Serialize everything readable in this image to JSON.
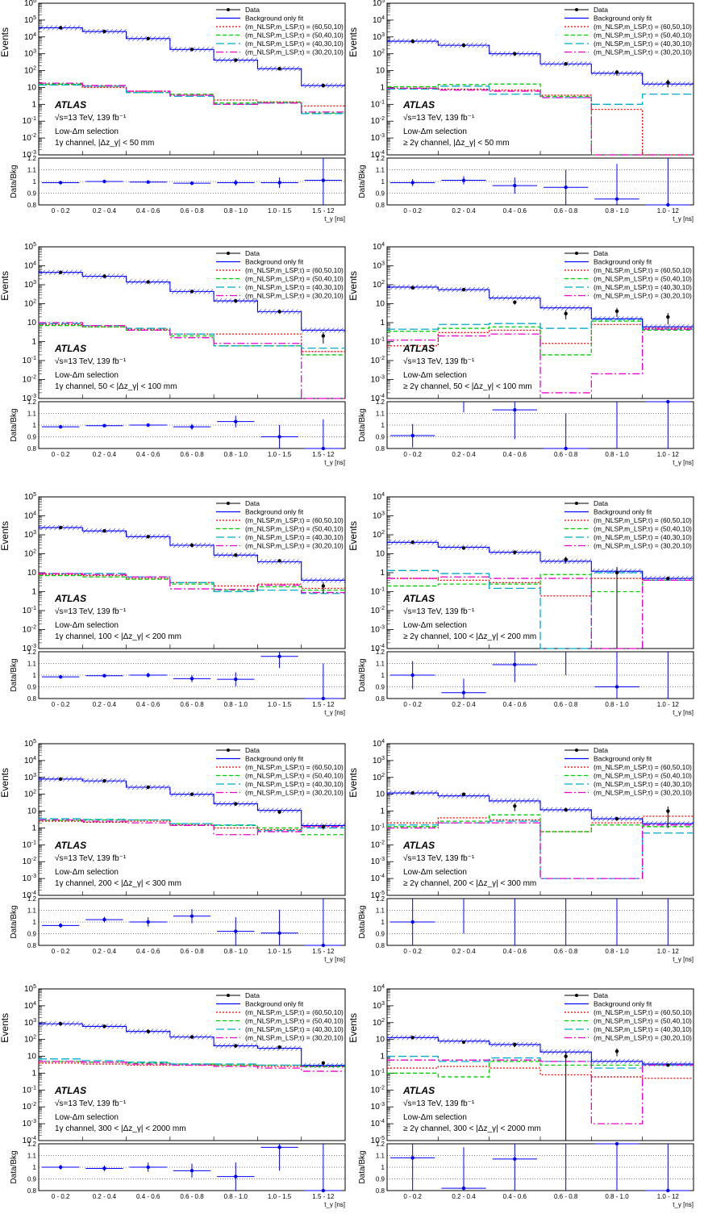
{
  "common": {
    "ylabel_main": "Events",
    "ylabel_ratio": "Data/Bkg",
    "xlabel": "t_γ [ns]",
    "atlas_label": "ATLAS",
    "energy_label": "√s=13 TeV, 139 fb⁻¹",
    "selection_label": "Low-Δm selection",
    "legend": [
      {
        "key": "data",
        "label": "Data",
        "color": "#000000",
        "style": "data"
      },
      {
        "key": "bkg",
        "label": "Background only fit",
        "color": "#0000ff",
        "style": "solid"
      },
      {
        "key": "s60",
        "label": "(m_NLSP,m_LSP,τ) = (60,50,10)",
        "color": "#ff0000",
        "style": "dot"
      },
      {
        "key": "s50",
        "label": "(m_NLSP,m_LSP,τ) = (50,40,10)",
        "color": "#00cc00",
        "style": "dash"
      },
      {
        "key": "s40",
        "label": "(m_NLSP,m_LSP,τ) = (40,30,10)",
        "color": "#00aacc",
        "style": "longdash"
      },
      {
        "key": "s30",
        "label": "(m_NLSP,m_LSP,τ) = (30,20,10)",
        "color": "#ee00cc",
        "style": "dashdot"
      }
    ],
    "ratio_ticks": [
      "0.8",
      "0.9",
      "1",
      "1.1",
      "1.2"
    ]
  },
  "chart_data": [
    {
      "id": "p1",
      "type": "histogram",
      "channel_label": "1γ channel, |Δz_γ| < 50 mm",
      "categories": [
        "0 - 0.2",
        "0.2 - 0.4",
        "0.4 - 0.6",
        "0.6 - 0.8",
        "0.8 - 1.0",
        "1.0 - 1.5",
        "1.5 - 12"
      ],
      "ylim_exp": [
        -3,
        6
      ],
      "ylog": true,
      "data": [
        35000,
        21000,
        8000,
        1800,
        420,
        130,
        13
      ],
      "data_err": [
        0,
        0,
        0,
        0,
        0,
        0,
        2
      ],
      "bkg": [
        35000,
        21000,
        8000,
        1800,
        420,
        130,
        13
      ],
      "s60": [
        15,
        10,
        6,
        3.5,
        1.8,
        1.4,
        0.8
      ],
      "s50": [
        16,
        12,
        5,
        4,
        1.2,
        1.3,
        0.3
      ],
      "s40": [
        14,
        12,
        5,
        3,
        1,
        1.2,
        0.28
      ],
      "s30": [
        18,
        13,
        6,
        3.5,
        1,
        1.2,
        0.35
      ],
      "ratio": [
        0.99,
        1.0,
        0.995,
        0.985,
        0.99,
        0.99,
        1.01
      ],
      "ratio_err": [
        0.003,
        0.004,
        0.006,
        0.012,
        0.025,
        0.045,
        0.3
      ]
    },
    {
      "id": "p2",
      "type": "histogram",
      "channel_label": "≥ 2γ channel, |Δz_γ| < 50 mm",
      "categories": [
        "0 - 0.2",
        "0.2 - 0.4",
        "0.4 - 0.6",
        "0.6 - 0.8",
        "0.8 - 1.0",
        "1.0 - 12"
      ],
      "ylim_exp": [
        -4,
        5
      ],
      "ylog": true,
      "data": [
        550,
        320,
        100,
        25,
        8,
        2
      ],
      "data_err": [
        0,
        0,
        0,
        0,
        3,
        1
      ],
      "bkg": [
        560,
        320,
        100,
        25,
        7,
        1.6
      ],
      "s60": [
        0.9,
        0.8,
        0.7,
        0.35,
        0.05,
        0.0
      ],
      "s50": [
        1.1,
        1.5,
        1.6,
        0.3,
        0.0,
        0.0
      ],
      "s40": [
        0.8,
        1.2,
        0.4,
        0.25,
        0.1,
        0.4
      ],
      "s30": [
        0.9,
        0.7,
        0.6,
        0.25,
        0.0,
        0.0
      ],
      "ratio": [
        0.99,
        1.01,
        0.965,
        0.95,
        0.85,
        0.8
      ],
      "ratio_err": [
        0.03,
        0.035,
        0.07,
        0.15,
        0.3,
        0.4
      ]
    },
    {
      "id": "p3",
      "type": "histogram",
      "channel_label": "1γ channel, 50 < |Δz_γ| < 100 mm",
      "categories": [
        "0 - 0.2",
        "0.2 - 0.4",
        "0.4 - 0.6",
        "0.6 - 0.8",
        "0.8 - 1.0",
        "1.0 - 1.5",
        "1.5 - 12"
      ],
      "ylim_exp": [
        -3,
        5
      ],
      "ylog": true,
      "data": [
        4500,
        2800,
        1400,
        440,
        140,
        38,
        2
      ],
      "data_err": [
        0,
        0,
        0,
        0,
        0,
        4,
        1.2
      ],
      "bkg": [
        4500,
        2800,
        1400,
        440,
        140,
        38,
        4
      ],
      "s60": [
        8,
        6,
        4.5,
        2.5,
        2.5,
        2.5,
        0.3
      ],
      "s50": [
        7,
        6,
        4,
        2,
        0.6,
        0.6,
        0.2
      ],
      "s40": [
        9,
        7,
        5,
        2.5,
        0.6,
        0.6,
        0.45
      ],
      "s30": [
        10,
        7,
        4,
        1.6,
        0.8,
        0.8,
        0.001
      ],
      "ratio": [
        0.985,
        0.995,
        1.0,
        0.985,
        1.03,
        0.9,
        0.8
      ],
      "ratio_err": [
        0.01,
        0.01,
        0.015,
        0.025,
        0.05,
        0.1,
        0.25
      ]
    },
    {
      "id": "p4",
      "type": "histogram",
      "channel_label": "≥ 2γ channel, 50 < |Δz_γ| < 100 mm",
      "categories": [
        "0 - 0.2",
        "0.2 - 0.4",
        "0.4 - 0.6",
        "0.6 - 0.8",
        "0.8 - 1.0",
        "1.0 - 12"
      ],
      "ylim_exp": [
        -4,
        4
      ],
      "ylog": true,
      "data": [
        70,
        55,
        12,
        3,
        4,
        2
      ],
      "data_err": [
        0,
        0,
        3,
        1.5,
        2,
        1.2
      ],
      "bkg": [
        75,
        55,
        20,
        6,
        1.6,
        0.6
      ],
      "s60": [
        0.06,
        0.3,
        0.4,
        0.08,
        0.8,
        0.5
      ],
      "s50": [
        0.35,
        0.5,
        0.6,
        0.02,
        1.2,
        0.4
      ],
      "s40": [
        0.45,
        0.8,
        0.9,
        0.5,
        1.5,
        0.45
      ],
      "s30": [
        0.12,
        0.2,
        0.25,
        0.0002,
        0.002,
        0.45
      ],
      "ratio": [
        0.91,
        1.21,
        1.13,
        0.8,
        1.5,
        1.2
      ],
      "ratio_err": [
        0.1,
        0.1,
        0.25,
        0.3,
        0.8,
        0.8
      ]
    },
    {
      "id": "p5",
      "type": "histogram",
      "channel_label": "1γ channel, 100 < |Δz_γ| < 200 mm",
      "categories": [
        "0 - 0.2",
        "0.2 - 0.4",
        "0.4 - 0.6",
        "0.6 - 0.8",
        "0.8 - 1.0",
        "1.0 - 1.5",
        "1.5 - 12"
      ],
      "ylim_exp": [
        -3,
        5
      ],
      "ylog": true,
      "data": [
        2400,
        1600,
        800,
        280,
        85,
        42,
        2
      ],
      "data_err": [
        0,
        0,
        0,
        0,
        0,
        0,
        1.2
      ],
      "bkg": [
        2400,
        1600,
        800,
        280,
        85,
        38,
        4
      ],
      "s60": [
        8,
        7,
        5,
        3,
        2,
        2.5,
        1.5
      ],
      "s50": [
        7,
        6,
        4.5,
        2.5,
        1.2,
        1.8,
        1.2
      ],
      "s40": [
        9,
        9,
        6,
        3,
        1.0,
        1.2,
        0.8
      ],
      "s30": [
        9,
        8,
        6,
        1.4,
        1.3,
        2.2,
        0.9
      ],
      "ratio": [
        0.985,
        0.995,
        1.0,
        0.97,
        0.965,
        1.16,
        0.8
      ],
      "ratio_err": [
        0.01,
        0.015,
        0.02,
        0.03,
        0.06,
        0.1,
        0.3
      ]
    },
    {
      "id": "p6",
      "type": "histogram",
      "channel_label": "≥ 2γ channel, 100 < |Δz_γ| < 200 mm",
      "categories": [
        "0 - 0.2",
        "0.2 - 0.4",
        "0.4 - 0.6",
        "0.6 - 0.8",
        "0.8 - 1.0",
        "1.0 - 12"
      ],
      "ylim_exp": [
        -4,
        4
      ],
      "ylog": true,
      "data": [
        40,
        20,
        12,
        5,
        1,
        0.5
      ],
      "data_err": [
        0,
        0,
        3,
        2,
        1,
        0
      ],
      "bkg": [
        40,
        22,
        12,
        4,
        1.2,
        0.5
      ],
      "s60": [
        0.5,
        0.4,
        0.3,
        0.06,
        0.5,
        0.4
      ],
      "s50": [
        0.2,
        0.25,
        0.25,
        0.8,
        0.1,
        0.4
      ],
      "s40": [
        1.3,
        0.9,
        0.15,
        0.0001,
        1.0,
        0.4
      ],
      "s30": [
        0.5,
        0.6,
        0.5,
        0.5,
        0.0001,
        0.4
      ],
      "ratio": [
        1.0,
        0.85,
        1.09,
        1.3,
        0.9,
        0.7
      ],
      "ratio_err": [
        0.12,
        0.12,
        0.15,
        0.3,
        0.9,
        0.9
      ]
    },
    {
      "id": "p7",
      "type": "histogram",
      "channel_label": "1γ channel, 200 < |Δz_γ| < 300 mm",
      "categories": [
        "0 - 0.2",
        "0.2 - 0.4",
        "0.4 - 0.6",
        "0.6 - 0.8",
        "0.8 - 1.0",
        "1.0 - 1.5",
        "1.5 - 12"
      ],
      "ylim_exp": [
        -4,
        5
      ],
      "ylog": true,
      "data": [
        800,
        620,
        260,
        100,
        27,
        9,
        1.2
      ],
      "data_err": [
        0,
        0,
        0,
        0,
        0,
        2,
        0.4
      ],
      "bkg": [
        800,
        620,
        260,
        100,
        27,
        11,
        1.4
      ],
      "s60": [
        2.5,
        2.2,
        2.5,
        1.5,
        1.0,
        0.8,
        1.3
      ],
      "s50": [
        2.8,
        3.0,
        3.0,
        1.8,
        1.4,
        1.0,
        0.4
      ],
      "s40": [
        3.5,
        3.2,
        3.0,
        1.8,
        1.5,
        0.7,
        1.0
      ],
      "s30": [
        3.0,
        2.5,
        2.0,
        1.4,
        0.4,
        0.6,
        1.2
      ],
      "ratio": [
        0.97,
        1.02,
        1.0,
        1.05,
        0.92,
        0.905,
        0.8
      ],
      "ratio_err": [
        0.02,
        0.025,
        0.04,
        0.06,
        0.12,
        0.2,
        0.5
      ]
    },
    {
      "id": "p8",
      "type": "histogram",
      "channel_label": "≥ 2γ channel, 200 < |Δz_γ| < 300 mm",
      "categories": [
        "0 - 0.2",
        "0.2 - 0.4",
        "0.4 - 0.6",
        "0.6 - 0.8",
        "0.8 - 1.0",
        "1.0 - 12"
      ],
      "ylim_exp": [
        -5,
        4
      ],
      "ylog": true,
      "data": [
        12,
        10,
        2,
        1.2,
        0.35,
        1
      ],
      "data_err": [
        0,
        0,
        1,
        0,
        0,
        0.9
      ],
      "bkg": [
        12,
        8,
        4,
        1.2,
        0.35,
        0.18
      ],
      "s60": [
        0.2,
        0.4,
        0.3,
        0.06,
        0.2,
        0.5
      ],
      "s50": [
        0.12,
        0.25,
        0.6,
        0.06,
        0.15,
        0.12
      ],
      "s40": [
        0.15,
        0.2,
        0.25,
        0.0001,
        0.0001,
        0.05
      ],
      "s30": [
        0.1,
        0.2,
        0.2,
        0.0001,
        0.0001,
        0.15
      ],
      "ratio": [
        1.0,
        1.3,
        0.7,
        1.3,
        0.7,
        1.3
      ],
      "ratio_err": [
        0.3,
        0.4,
        0.5,
        0.9,
        0.9,
        0.9
      ]
    },
    {
      "id": "p9",
      "type": "histogram",
      "channel_label": "1γ channel, 300 < |Δz_γ| < 2000 mm",
      "categories": [
        "0 - 0.2",
        "0.2 - 0.4",
        "0.4 - 0.6",
        "0.6 - 0.8",
        "0.8 - 1.0",
        "1.0 - 1.5",
        "1.5 - 12"
      ],
      "ylim_exp": [
        -4,
        5
      ],
      "ylog": true,
      "data": [
        850,
        600,
        300,
        140,
        42,
        35,
        4
      ],
      "data_err": [
        0,
        0,
        0,
        0,
        0,
        0,
        1
      ],
      "bkg": [
        850,
        600,
        300,
        140,
        42,
        30,
        2.8
      ],
      "s60": [
        4,
        3.5,
        3,
        3,
        3,
        2.5,
        2.5
      ],
      "s50": [
        5,
        4.5,
        4,
        3.5,
        3,
        3,
        2.4
      ],
      "s40": [
        7,
        5.5,
        4.5,
        3.5,
        3.5,
        3,
        3
      ],
      "s30": [
        5,
        4.5,
        3.5,
        3,
        2.5,
        2,
        1.3
      ],
      "ratio": [
        1.0,
        0.99,
        1.0,
        0.97,
        0.92,
        1.17,
        0.8
      ],
      "ratio_err": [
        0.02,
        0.025,
        0.04,
        0.06,
        0.12,
        0.2,
        0.5
      ]
    },
    {
      "id": "p10",
      "type": "histogram",
      "channel_label": "≥ 2γ channel, 300 < |Δz_γ| < 2000 mm",
      "categories": [
        "0 - 0.2",
        "0.2 - 0.4",
        "0.4 - 0.6",
        "0.6 - 0.8",
        "0.8 - 1.0",
        "1.0 - 12"
      ],
      "ylim_exp": [
        -5,
        4
      ],
      "ylog": true,
      "data": [
        13,
        7,
        5,
        1,
        2,
        0.3
      ],
      "data_err": [
        0,
        0,
        1.5,
        1,
        1,
        0
      ],
      "bkg": [
        13,
        8,
        5,
        1.8,
        0.5,
        0.35
      ],
      "s60": [
        0.2,
        0.25,
        0.2,
        0.08,
        0.06,
        0.05
      ],
      "s50": [
        0.1,
        0.06,
        0.5,
        0.3,
        0.3,
        0.3
      ],
      "s40": [
        1.0,
        0.5,
        0.8,
        0.5,
        0.2,
        0.3
      ],
      "s30": [
        0.6,
        0.6,
        0.6,
        0.5,
        0.0001,
        0.3
      ],
      "ratio": [
        1.08,
        0.82,
        1.07,
        1.3,
        1.2,
        0.8
      ],
      "ratio_err": [
        0.3,
        0.35,
        0.3,
        0.7,
        0.7,
        0.8
      ]
    }
  ]
}
